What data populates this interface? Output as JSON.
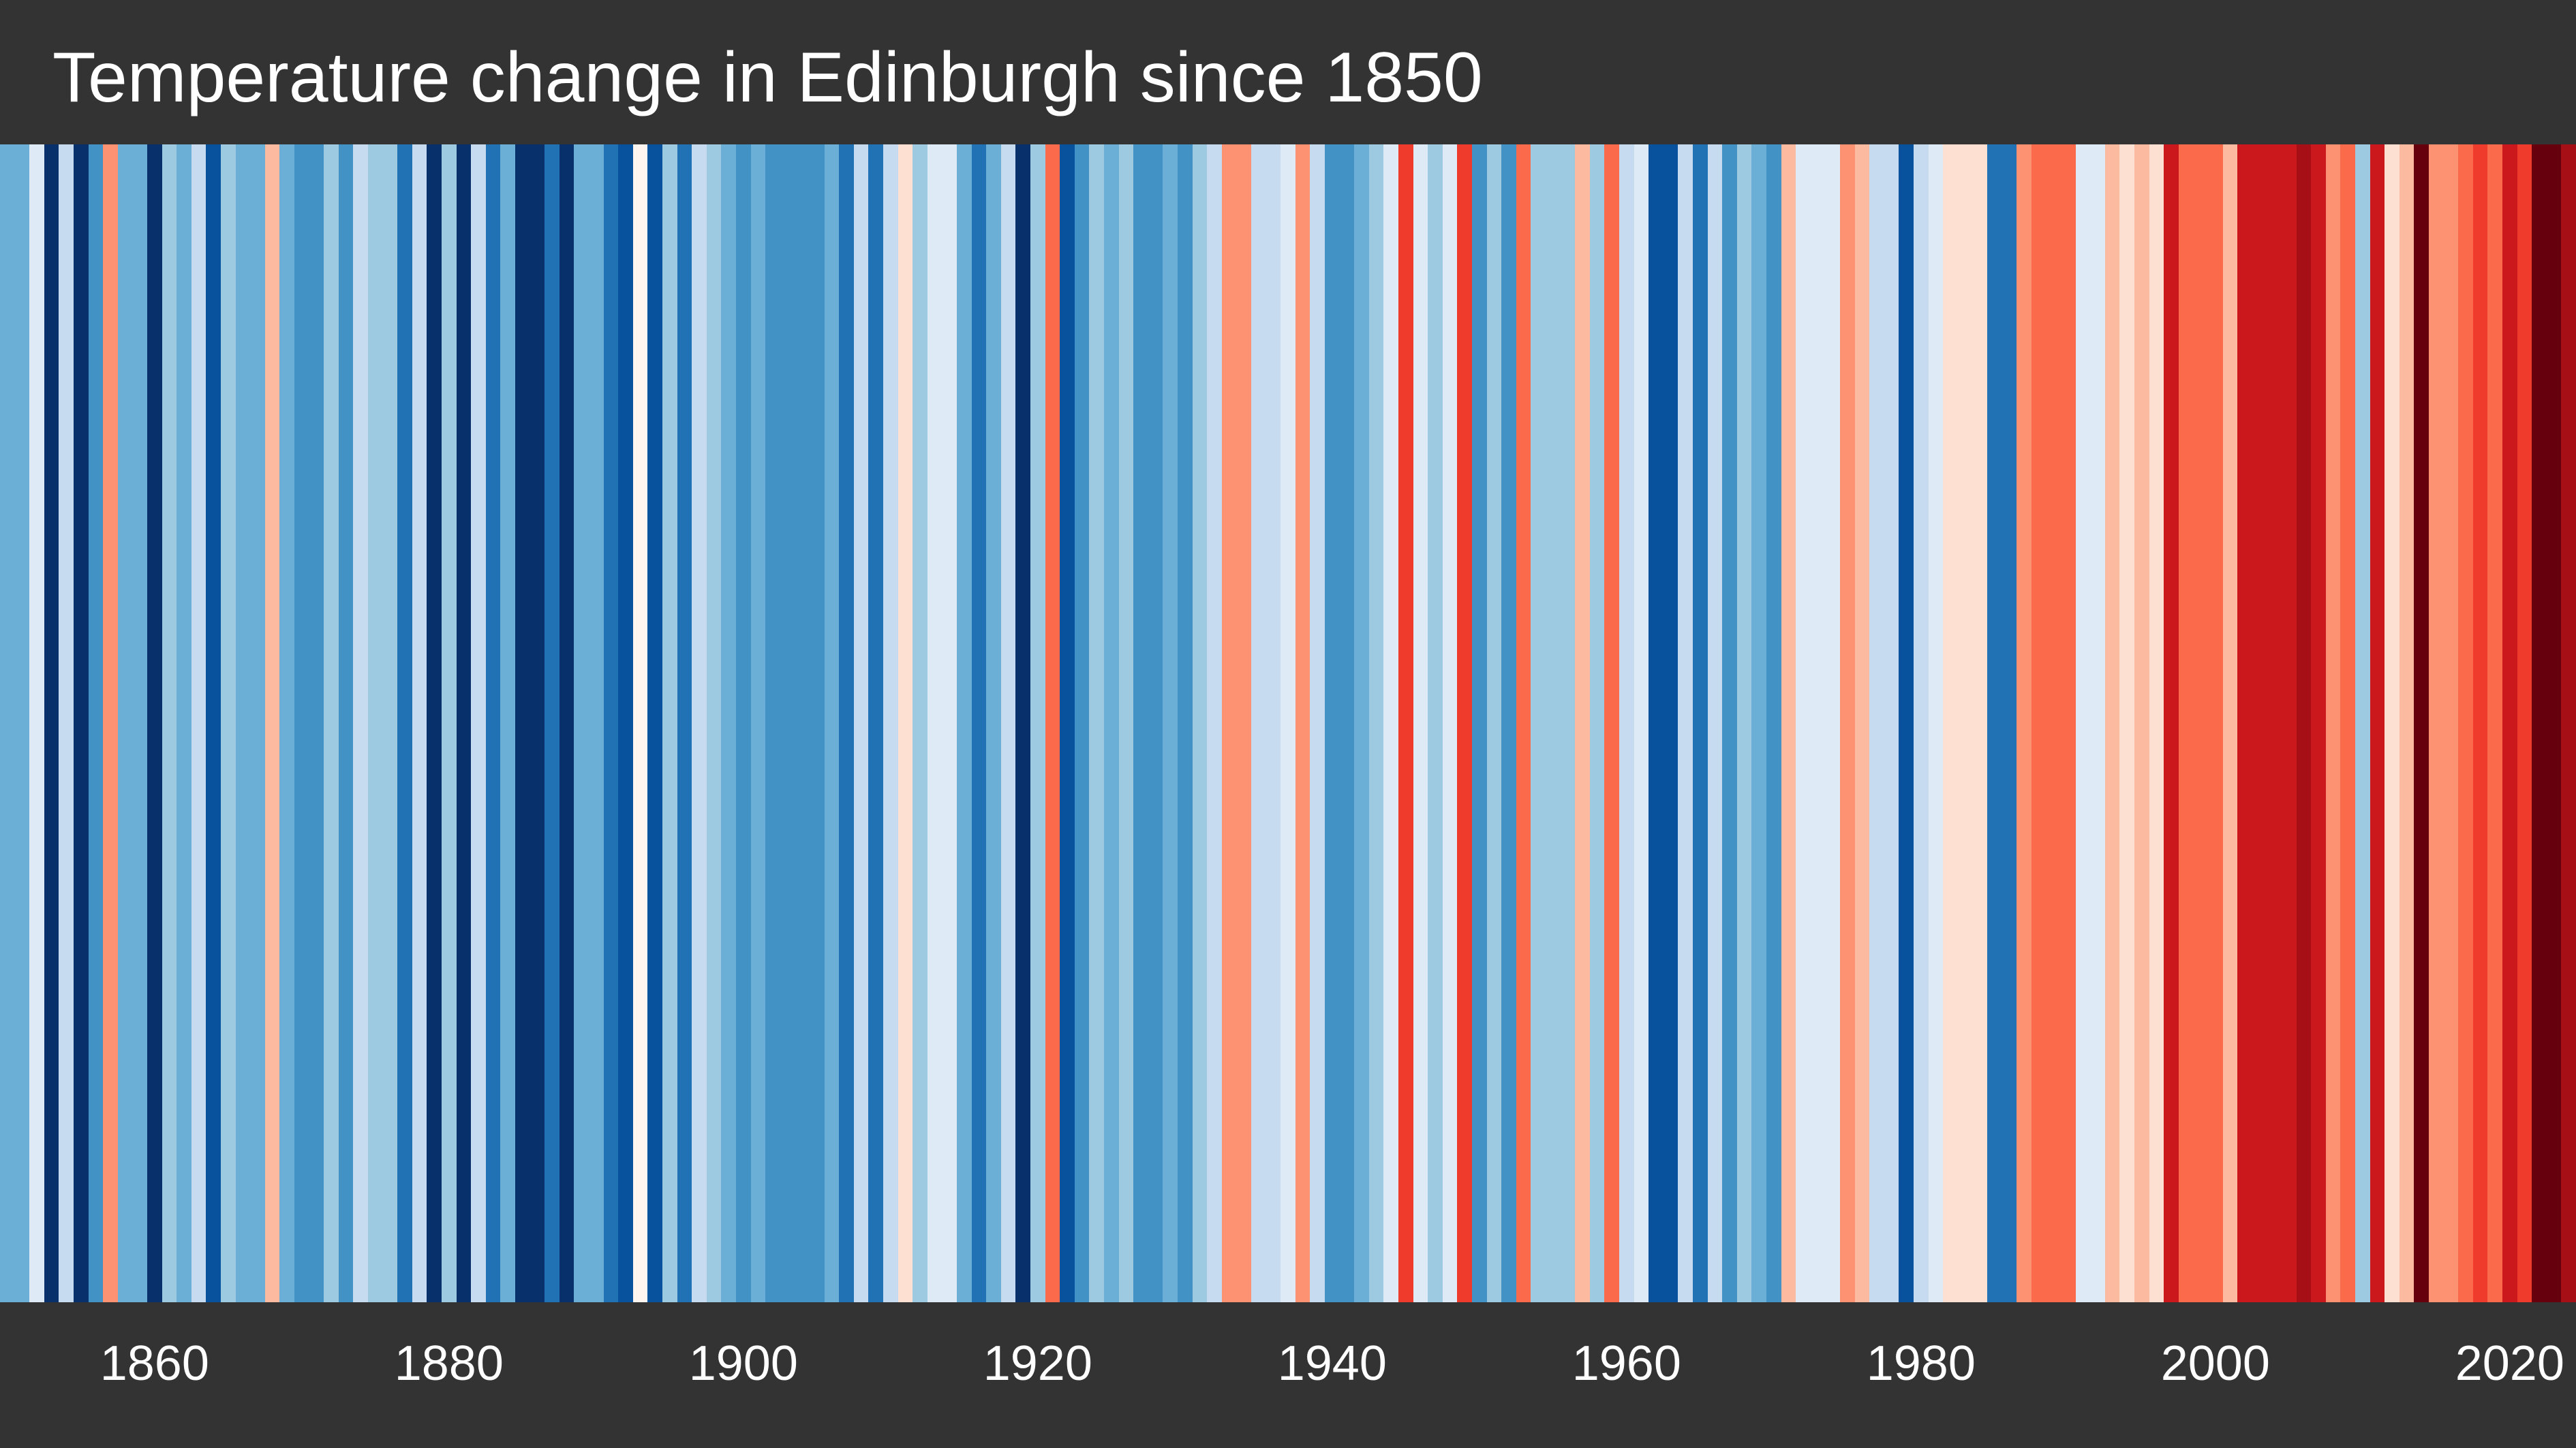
{
  "theme": {
    "background": "#333333",
    "text": "#ffffff"
  },
  "chart_data": {
    "type": "heatmap",
    "title": "Temperature change in Edinburgh since 1850",
    "xlim": [
      1850,
      2024
    ],
    "x_ticks": [
      1860,
      1880,
      1900,
      1920,
      1940,
      1960,
      1980,
      2000,
      2020
    ],
    "grid": false,
    "x": [
      1850,
      1851,
      1852,
      1853,
      1854,
      1855,
      1856,
      1857,
      1858,
      1859,
      1860,
      1861,
      1862,
      1863,
      1864,
      1865,
      1866,
      1867,
      1868,
      1869,
      1870,
      1871,
      1872,
      1873,
      1874,
      1875,
      1876,
      1877,
      1878,
      1879,
      1880,
      1881,
      1882,
      1883,
      1884,
      1885,
      1886,
      1887,
      1888,
      1889,
      1890,
      1891,
      1892,
      1893,
      1894,
      1895,
      1896,
      1897,
      1898,
      1899,
      1900,
      1901,
      1902,
      1903,
      1904,
      1905,
      1906,
      1907,
      1908,
      1909,
      1910,
      1911,
      1912,
      1913,
      1914,
      1915,
      1916,
      1917,
      1918,
      1919,
      1920,
      1921,
      1922,
      1923,
      1924,
      1925,
      1926,
      1927,
      1928,
      1929,
      1930,
      1931,
      1932,
      1933,
      1934,
      1935,
      1936,
      1937,
      1938,
      1939,
      1940,
      1941,
      1942,
      1943,
      1944,
      1945,
      1946,
      1947,
      1948,
      1949,
      1950,
      1951,
      1952,
      1953,
      1954,
      1955,
      1956,
      1957,
      1958,
      1959,
      1960,
      1961,
      1962,
      1963,
      1964,
      1965,
      1966,
      1967,
      1968,
      1969,
      1970,
      1971,
      1972,
      1973,
      1974,
      1975,
      1976,
      1977,
      1978,
      1979,
      1980,
      1981,
      1982,
      1983,
      1984,
      1985,
      1986,
      1987,
      1988,
      1989,
      1990,
      1991,
      1992,
      1993,
      1994,
      1995,
      1996,
      1997,
      1998,
      1999,
      2000,
      2001,
      2002,
      2003,
      2004,
      2005,
      2006,
      2007,
      2008,
      2009,
      2010,
      2011,
      2012,
      2013,
      2014,
      2015,
      2016,
      2017,
      2018,
      2019,
      2020,
      2021,
      2022,
      2023,
      2024
    ],
    "colors": [
      "#6baed6",
      "#6baed6",
      "#deebf7",
      "#08306b",
      "#c6dbef",
      "#08306b",
      "#4292c6",
      "#fc9272",
      "#6baed6",
      "#6baed6",
      "#08306b",
      "#9ecae1",
      "#6baed6",
      "#c6dbef",
      "#08519c",
      "#9ecae1",
      "#6baed6",
      "#6baed6",
      "#fcbba1",
      "#6baed6",
      "#4292c6",
      "#4292c6",
      "#9ecae1",
      "#4292c6",
      "#c6dbef",
      "#9ecae1",
      "#9ecae1",
      "#2171b5",
      "#c6dbef",
      "#08306b",
      "#9ecae1",
      "#08306b",
      "#c6dbef",
      "#2171b5",
      "#6baed6",
      "#08306b",
      "#08306b",
      "#2171b5",
      "#08306b",
      "#6baed6",
      "#6baed6",
      "#2171b5",
      "#08519c",
      "#fff5f0",
      "#08519c",
      "#9ecae1",
      "#2171b5",
      "#c6dbef",
      "#9ecae1",
      "#6baed6",
      "#4292c6",
      "#6baed6",
      "#4292c6",
      "#4292c6",
      "#4292c6",
      "#4292c6",
      "#6baed6",
      "#2171b5",
      "#c6dbef",
      "#2171b5",
      "#c6dbef",
      "#fee0d2",
      "#9ecae1",
      "#deebf7",
      "#deebf7",
      "#6baed6",
      "#2171b5",
      "#6baed6",
      "#c6dbef",
      "#08306b",
      "#9ecae1",
      "#fb6a4a",
      "#08519c",
      "#4292c6",
      "#9ecae1",
      "#6baed6",
      "#9ecae1",
      "#4292c6",
      "#4292c6",
      "#6baed6",
      "#4292c6",
      "#9ecae1",
      "#c6dbef",
      "#fc9272",
      "#fc9272",
      "#c6dbef",
      "#c6dbef",
      "#deebf7",
      "#fc9272",
      "#c6dbef",
      "#4292c6",
      "#4292c6",
      "#6baed6",
      "#9ecae1",
      "#deebf7",
      "#ef3b2c",
      "#deebf7",
      "#9ecae1",
      "#deebf7",
      "#ef3b2c",
      "#4292c6",
      "#9ecae1",
      "#4292c6",
      "#fb6a4a",
      "#9ecae1",
      "#9ecae1",
      "#9ecae1",
      "#fcbba1",
      "#9ecae1",
      "#fb6a4a",
      "#c6dbef",
      "#deebf7",
      "#08519c",
      "#08519c",
      "#c6dbef",
      "#2171b5",
      "#c6dbef",
      "#4292c6",
      "#9ecae1",
      "#6baed6",
      "#4292c6",
      "#fcbba1",
      "#deebf7",
      "#deebf7",
      "#deebf7",
      "#fc9272",
      "#fcbba1",
      "#c6dbef",
      "#c6dbef",
      "#08519c",
      "#c6dbef",
      "#deebf7",
      "#fee0d2",
      "#fee0d2",
      "#fee0d2",
      "#2171b5",
      "#2171b5",
      "#fc9272",
      "#fb6a4a",
      "#fb6a4a",
      "#fb6a4a",
      "#deebf7",
      "#deebf7",
      "#fcbba1",
      "#fee0d2",
      "#fcbba1",
      "#fee0d2",
      "#cb181d",
      "#fb6a4a",
      "#fb6a4a",
      "#fb6a4a",
      "#fcbba1",
      "#cb181d",
      "#cb181d",
      "#cb181d",
      "#cb181d",
      "#a50f15",
      "#cb181d",
      "#fc9272",
      "#fb6a4a",
      "#9ecae1",
      "#cb181d",
      "#fee0d2",
      "#fcbba1",
      "#67000d",
      "#fc9272",
      "#fc9272",
      "#fb6a4a",
      "#ef3b2c",
      "#fb6a4a",
      "#cb181d",
      "#ef3b2c",
      "#67000d",
      "#67000d",
      "#a50f15"
    ]
  }
}
